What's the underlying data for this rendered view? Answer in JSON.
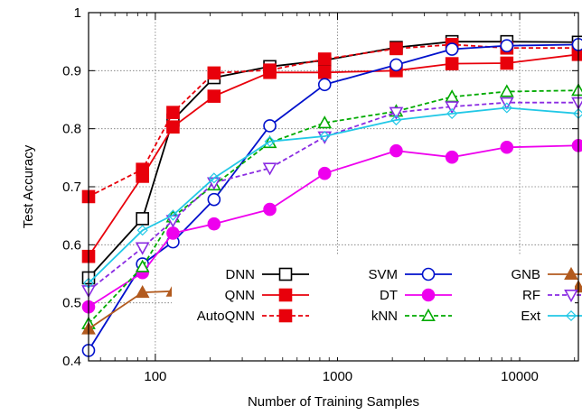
{
  "chart_data": {
    "type": "line",
    "xlabel": "Number of Training Samples",
    "ylabel": "Test Accuracy",
    "x_scale": "log",
    "xlim": [
      43,
      21000
    ],
    "ylim": [
      0.4,
      1.0
    ],
    "grid": true,
    "legend_position": "bottom-right",
    "x_ticks": [
      {
        "value": 100,
        "label": "100"
      },
      {
        "value": 1000,
        "label": "1000"
      },
      {
        "value": 10000,
        "label": "10000"
      }
    ],
    "y_ticks": [
      {
        "value": 0.4,
        "label": "0.4"
      },
      {
        "value": 0.5,
        "label": "0.5"
      },
      {
        "value": 0.6,
        "label": "0.6"
      },
      {
        "value": 0.7,
        "label": "0.7"
      },
      {
        "value": 0.8,
        "label": "0.8"
      },
      {
        "value": 0.9,
        "label": "0.9"
      },
      {
        "value": 1.0,
        "label": "1"
      }
    ],
    "x": [
      43,
      85,
      125,
      210,
      425,
      850,
      2100,
      4250,
      8500,
      21000
    ],
    "series": [
      {
        "name": "DNN",
        "color": "#000000",
        "dashed": false,
        "marker": "square-open",
        "values": [
          0.543,
          0.645,
          0.815,
          0.888,
          0.907,
          0.918,
          0.94,
          0.95,
          0.95,
          0.949
        ]
      },
      {
        "name": "QNN",
        "color": "#e8000b",
        "dashed": false,
        "marker": "square-filled",
        "values": [
          0.58,
          0.718,
          0.803,
          0.856,
          0.897,
          0.897,
          0.9,
          0.912,
          0.913,
          0.928
        ]
      },
      {
        "name": "AutoQNN",
        "color": "#e8000b",
        "dashed": true,
        "marker": "square-filled",
        "values": [
          0.683,
          0.73,
          0.828,
          0.896,
          0.901,
          0.92,
          0.938,
          0.945,
          0.939,
          0.939
        ]
      },
      {
        "name": "SVM",
        "color": "#0011cc",
        "dashed": false,
        "marker": "circle-open",
        "values": [
          0.418,
          0.567,
          0.605,
          0.678,
          0.805,
          0.876,
          0.91,
          0.937,
          0.943,
          0.945
        ]
      },
      {
        "name": "DT",
        "color": "#ee00ee",
        "dashed": false,
        "marker": "circle-filled",
        "values": [
          0.493,
          0.552,
          0.62,
          0.636,
          0.661,
          0.723,
          0.762,
          0.751,
          0.768,
          0.771
        ]
      },
      {
        "name": "kNN",
        "color": "#00aa00",
        "dashed": true,
        "marker": "triangle-up-open",
        "values": [
          0.464,
          0.562,
          0.648,
          0.703,
          0.776,
          0.81,
          0.83,
          0.855,
          0.864,
          0.866
        ]
      },
      {
        "name": "GNB",
        "color": "#b25a1e",
        "dashed": false,
        "marker": "triangle-up-filled",
        "values": [
          0.455,
          0.518,
          0.52,
          0.524,
          0.525,
          0.523,
          0.519,
          0.527,
          0.527,
          0.527
        ]
      },
      {
        "name": "RF",
        "color": "#8a2be2",
        "dashed": true,
        "marker": "triangle-down-open",
        "values": [
          0.521,
          0.595,
          0.642,
          0.707,
          0.732,
          0.786,
          0.828,
          0.838,
          0.845,
          0.845
        ]
      },
      {
        "name": "Ext",
        "color": "#22c8e6",
        "dashed": false,
        "marker": "diamond-open",
        "values": [
          0.534,
          0.625,
          0.651,
          0.715,
          0.778,
          0.787,
          0.815,
          0.826,
          0.836,
          0.826
        ]
      }
    ]
  }
}
